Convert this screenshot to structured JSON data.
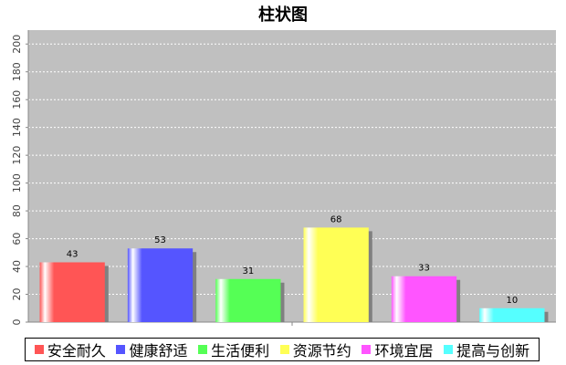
{
  "chart_data": {
    "type": "bar",
    "title": "柱状图",
    "xlabel": "",
    "ylabel": "",
    "categories": [
      "安全耐久",
      "健康舒适",
      "生活便利",
      "资源节约",
      "环境宜居",
      "提高与创新"
    ],
    "values": [
      43,
      53,
      31,
      68,
      33,
      10
    ],
    "colors": [
      "#ff5555",
      "#5555ff",
      "#55ff55",
      "#ffff55",
      "#ff55ff",
      "#55ffff"
    ],
    "ylim": [
      0,
      210
    ],
    "yticks": [
      0,
      20,
      40,
      60,
      80,
      100,
      120,
      140,
      160,
      180,
      200
    ],
    "grid": true,
    "legend_position": "bottom",
    "plot_background": "#c0c0c0"
  }
}
